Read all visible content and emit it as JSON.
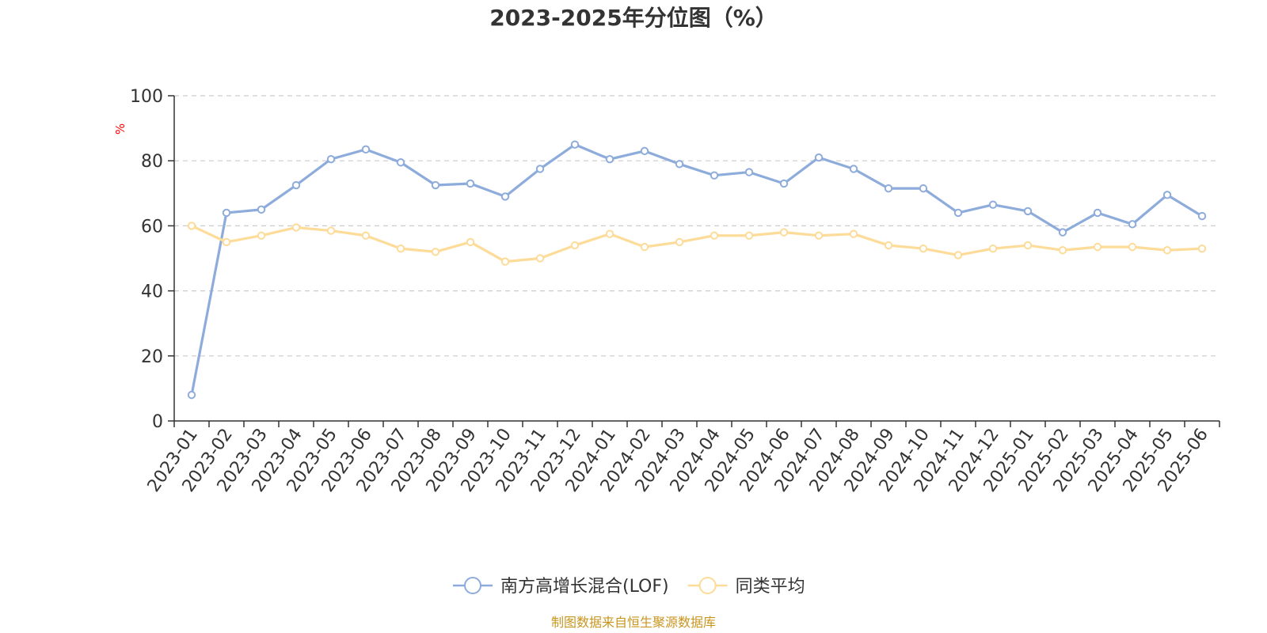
{
  "chart_data": {
    "type": "line",
    "title": "2023-2025年分位图（%）",
    "ylabel": "%",
    "xlabel": "",
    "ylim": [
      0,
      100
    ],
    "yticks": [
      0,
      20,
      40,
      60,
      80,
      100
    ],
    "grid": true,
    "legend_position": "bottom-center",
    "categories": [
      "2023-01",
      "2023-02",
      "2023-03",
      "2023-04",
      "2023-05",
      "2023-06",
      "2023-07",
      "2023-08",
      "2023-09",
      "2023-10",
      "2023-11",
      "2023-12",
      "2024-01",
      "2024-02",
      "2024-03",
      "2024-04",
      "2024-05",
      "2024-06",
      "2024-07",
      "2024-08",
      "2024-09",
      "2024-10",
      "2024-11",
      "2024-12",
      "2025-01",
      "2025-02",
      "2025-03",
      "2025-04",
      "2025-05",
      "2025-06"
    ],
    "series": [
      {
        "name": "南方高增长混合(LOF)",
        "color": "#8eacdb",
        "values": [
          8,
          64,
          65,
          72.5,
          80.5,
          83.5,
          79.5,
          72.5,
          73,
          69,
          77.5,
          85,
          80.5,
          83,
          79,
          75.5,
          76.5,
          73,
          81,
          77.5,
          71.5,
          71.5,
          64,
          66.5,
          64.5,
          58,
          64,
          60.5,
          69.5,
          63
        ]
      },
      {
        "name": "同类平均",
        "color": "#fddb98",
        "values": [
          60,
          55,
          57,
          59.5,
          58.5,
          57,
          53,
          52,
          55,
          49,
          50,
          54,
          57.5,
          53.5,
          55,
          57,
          57,
          58,
          57,
          57.5,
          54,
          53,
          51,
          53,
          54,
          52.5,
          53.5,
          53.5,
          52.5,
          53
        ]
      }
    ],
    "source": "制图数据来自恒生聚源数据库"
  },
  "colors": {
    "unit_label": "#ff0000",
    "source_label": "#c8961e"
  }
}
